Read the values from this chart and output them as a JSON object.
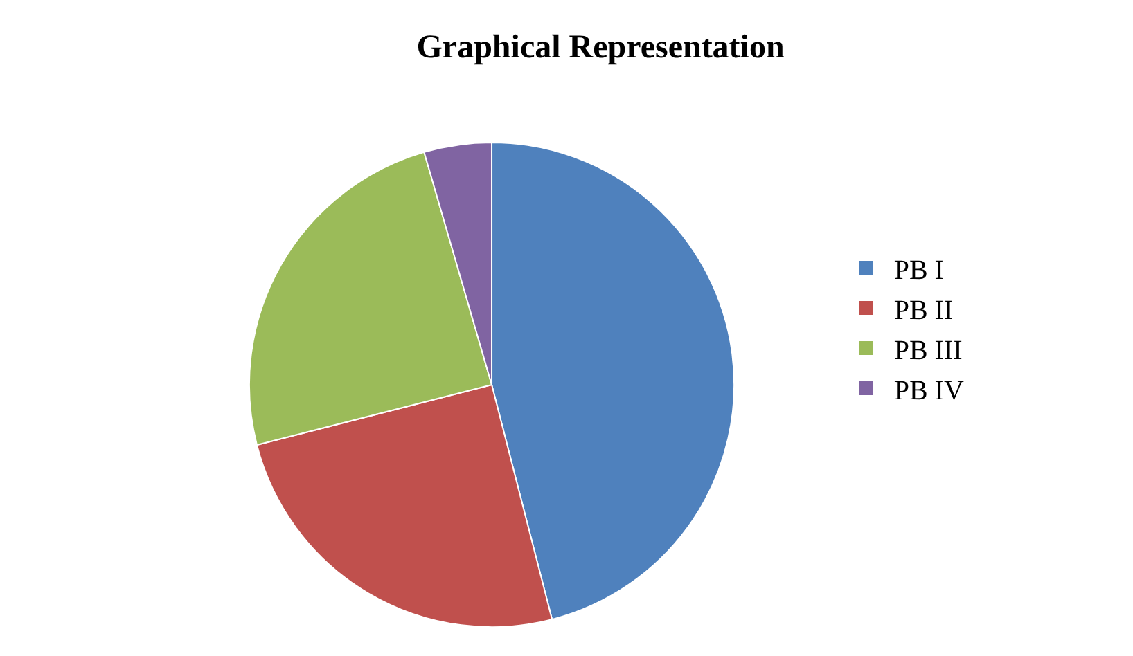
{
  "chart_data": {
    "type": "pie",
    "title": "Graphical Representation",
    "categories": [
      "PB I",
      "PB II",
      "PB III",
      "PB IV"
    ],
    "values": [
      46,
      25,
      24.5,
      4.5
    ],
    "colors": [
      "#4f81bd",
      "#c0504d",
      "#9bbb59",
      "#8064a2"
    ],
    "legend": "right"
  }
}
